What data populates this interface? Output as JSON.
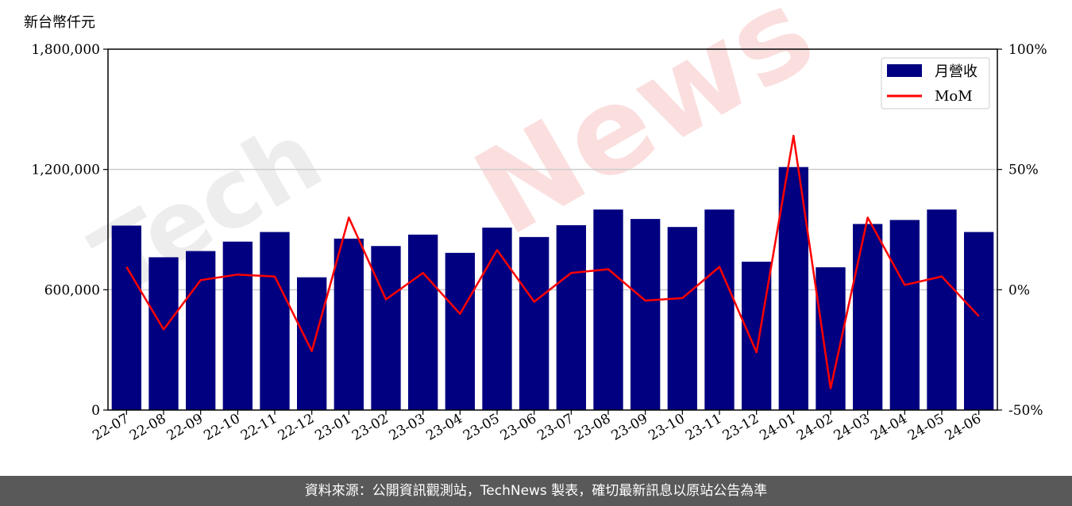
{
  "unit_label": "新台幣仟元",
  "footer_text": "資料來源：公開資訊觀測站，TechNews 製表，確切最新訊息以原站公告為準",
  "colors": {
    "bar": "#000080",
    "line": "#ff0000",
    "grid": "#cccccc",
    "footer_bg": "#595959"
  },
  "chart_data": {
    "type": "bar",
    "title": "",
    "categories": [
      "22-07",
      "22-08",
      "22-09",
      "22-10",
      "22-11",
      "22-12",
      "23-01",
      "23-02",
      "23-03",
      "23-04",
      "23-05",
      "23-06",
      "23-07",
      "23-08",
      "23-09",
      "23-10",
      "23-11",
      "23-12",
      "24-01",
      "24-02",
      "24-03",
      "24-04",
      "24-05",
      "24-06"
    ],
    "series": [
      {
        "name": "月營收",
        "type": "bar",
        "axis": "left",
        "values": [
          920000,
          762000,
          793000,
          840000,
          888000,
          662000,
          855000,
          818000,
          875000,
          784000,
          910000,
          863000,
          922000,
          1000000,
          953000,
          913000,
          1000000,
          740000,
          1212000,
          712000,
          928000,
          948000,
          1000000,
          888000
        ]
      },
      {
        "name": "MoM",
        "type": "line",
        "axis": "right",
        "values": [
          9.5,
          -16.5,
          4.0,
          6.3,
          5.5,
          -25.5,
          30.0,
          -4.0,
          7.0,
          -10.0,
          16.5,
          -5.0,
          7.0,
          8.5,
          -4.5,
          -3.5,
          9.5,
          -26.0,
          64.0,
          -41.0,
          30.0,
          2.0,
          5.5,
          -11.0
        ]
      }
    ],
    "y_left": {
      "ylim": [
        0,
        1800000
      ],
      "ticks": [
        0,
        600000,
        1200000,
        1800000
      ],
      "tick_labels": [
        "0",
        "600,000",
        "1,200,000",
        "1,800,000"
      ]
    },
    "y_right": {
      "ylim": [
        -50,
        100
      ],
      "ticks": [
        -50,
        0,
        50,
        100
      ],
      "tick_labels": [
        "-50%",
        "0%",
        "50%",
        "100%"
      ]
    },
    "xlabel": "",
    "ylabel": "",
    "grid": true,
    "legend_position": "top-right"
  }
}
